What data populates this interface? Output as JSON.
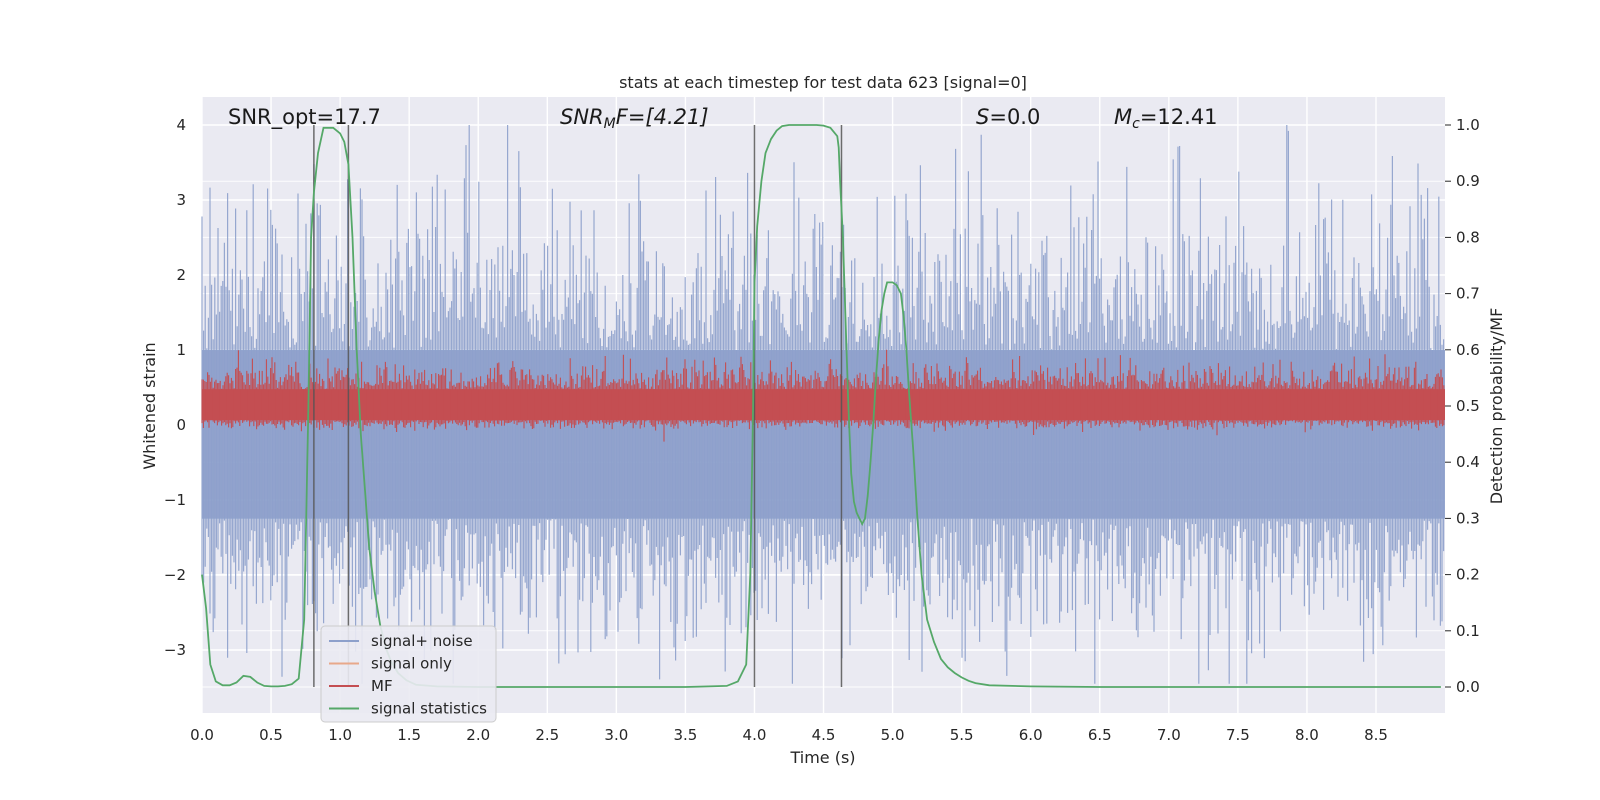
{
  "chart_data": {
    "type": "line",
    "title": "stats at each timestep for test data 623 [signal=0]",
    "xlabel": "Time (s)",
    "ylabel_left": "Whitened strain",
    "ylabel_right": "Detection probability/MF",
    "xlim": [
      0.0,
      9.0
    ],
    "ylim_left": [
      -3.85,
      4.35
    ],
    "ylim_right": [
      -0.045,
      1.045
    ],
    "x_ticks": [
      "0.0",
      "0.5",
      "1.0",
      "1.5",
      "2.0",
      "2.5",
      "3.0",
      "3.5",
      "4.0",
      "4.5",
      "5.0",
      "5.5",
      "6.0",
      "6.5",
      "7.0",
      "7.5",
      "8.0",
      "8.5"
    ],
    "y_ticks_left": [
      "4",
      "3",
      "2",
      "1",
      "0",
      "−1",
      "−2",
      "−3"
    ],
    "y_ticks_right": [
      "1.0",
      "0.9",
      "0.8",
      "0.7",
      "0.6",
      "0.5",
      "0.4",
      "0.3",
      "0.2",
      "0.1",
      "0.0"
    ],
    "grid": true,
    "legend_position": "lower-left",
    "annotations": {
      "snr_opt": "SNR_opt=17.7",
      "snr_mf_base": "SNR",
      "snr_mf_sub": "M",
      "snr_mf_value": "F=[4.21]",
      "s_sym": "S",
      "s_value": "=0.0",
      "mc_base": "M",
      "mc_sub": "c",
      "mc_value": "=12.41"
    },
    "series": [
      {
        "name": "signal+ noise",
        "color": "#8da0cb",
        "axis": "left",
        "description_range": [
          -3.45,
          4.0
        ]
      },
      {
        "name": "signal only",
        "color": "#e8a88a",
        "axis": "left"
      },
      {
        "name": "MF",
        "color": "#c44e52",
        "axis": "right",
        "baseline": 0.5,
        "range": [
          0.47,
          0.6
        ]
      },
      {
        "name": "signal statistics",
        "color": "#55a868",
        "axis": "right",
        "x": [
          0.0,
          0.03,
          0.06,
          0.1,
          0.15,
          0.2,
          0.25,
          0.3,
          0.35,
          0.4,
          0.45,
          0.5,
          0.55,
          0.6,
          0.65,
          0.7,
          0.74,
          0.77,
          0.79,
          0.81,
          0.84,
          0.88,
          0.9,
          0.95,
          1.0,
          1.03,
          1.06,
          1.09,
          1.12,
          1.15,
          1.18,
          1.21,
          1.25,
          1.29,
          1.33,
          1.37,
          1.42,
          1.48,
          1.55,
          1.7,
          2.0,
          2.5,
          3.0,
          3.5,
          3.8,
          3.88,
          3.94,
          3.97,
          3.99,
          4.0,
          4.02,
          4.05,
          4.08,
          4.12,
          4.16,
          4.2,
          4.25,
          4.3,
          4.35,
          4.4,
          4.45,
          4.5,
          4.55,
          4.6,
          4.61,
          4.62,
          4.64,
          4.66,
          4.68,
          4.7,
          4.72,
          4.74,
          4.76,
          4.78,
          4.8,
          4.82,
          4.84,
          4.86,
          4.88,
          4.9,
          4.92,
          4.94,
          4.96,
          4.98,
          5.0,
          5.03,
          5.06,
          5.08,
          5.1,
          5.12,
          5.15,
          5.18,
          5.21,
          5.25,
          5.3,
          5.35,
          5.4,
          5.45,
          5.5,
          5.55,
          5.6,
          5.7,
          6.0,
          6.5,
          7.0,
          7.5,
          8.0,
          8.5,
          8.97
        ],
        "y": [
          0.2,
          0.14,
          0.04,
          0.01,
          0.003,
          0.003,
          0.008,
          0.02,
          0.018,
          0.008,
          0.002,
          0.001,
          0.001,
          0.002,
          0.005,
          0.015,
          0.12,
          0.5,
          0.8,
          0.88,
          0.95,
          0.995,
          0.995,
          0.995,
          0.985,
          0.97,
          0.93,
          0.8,
          0.6,
          0.45,
          0.35,
          0.25,
          0.17,
          0.11,
          0.07,
          0.045,
          0.025,
          0.012,
          0.004,
          0.001,
          0.0,
          0.0,
          0.0,
          0.0,
          0.002,
          0.01,
          0.04,
          0.2,
          0.5,
          0.72,
          0.82,
          0.9,
          0.95,
          0.975,
          0.99,
          0.998,
          1.0,
          1.0,
          1.0,
          1.0,
          1.0,
          0.999,
          0.995,
          0.98,
          0.96,
          0.9,
          0.8,
          0.65,
          0.5,
          0.38,
          0.33,
          0.31,
          0.3,
          0.29,
          0.3,
          0.34,
          0.4,
          0.47,
          0.55,
          0.62,
          0.67,
          0.7,
          0.72,
          0.72,
          0.72,
          0.715,
          0.7,
          0.66,
          0.6,
          0.52,
          0.42,
          0.3,
          0.2,
          0.12,
          0.08,
          0.05,
          0.035,
          0.025,
          0.017,
          0.011,
          0.007,
          0.003,
          0.001,
          0.0,
          0.0,
          0.0,
          0.0,
          0.0,
          0.0
        ]
      }
    ],
    "vertical_lines": [
      0.81,
      1.06,
      4.0,
      4.63
    ]
  }
}
